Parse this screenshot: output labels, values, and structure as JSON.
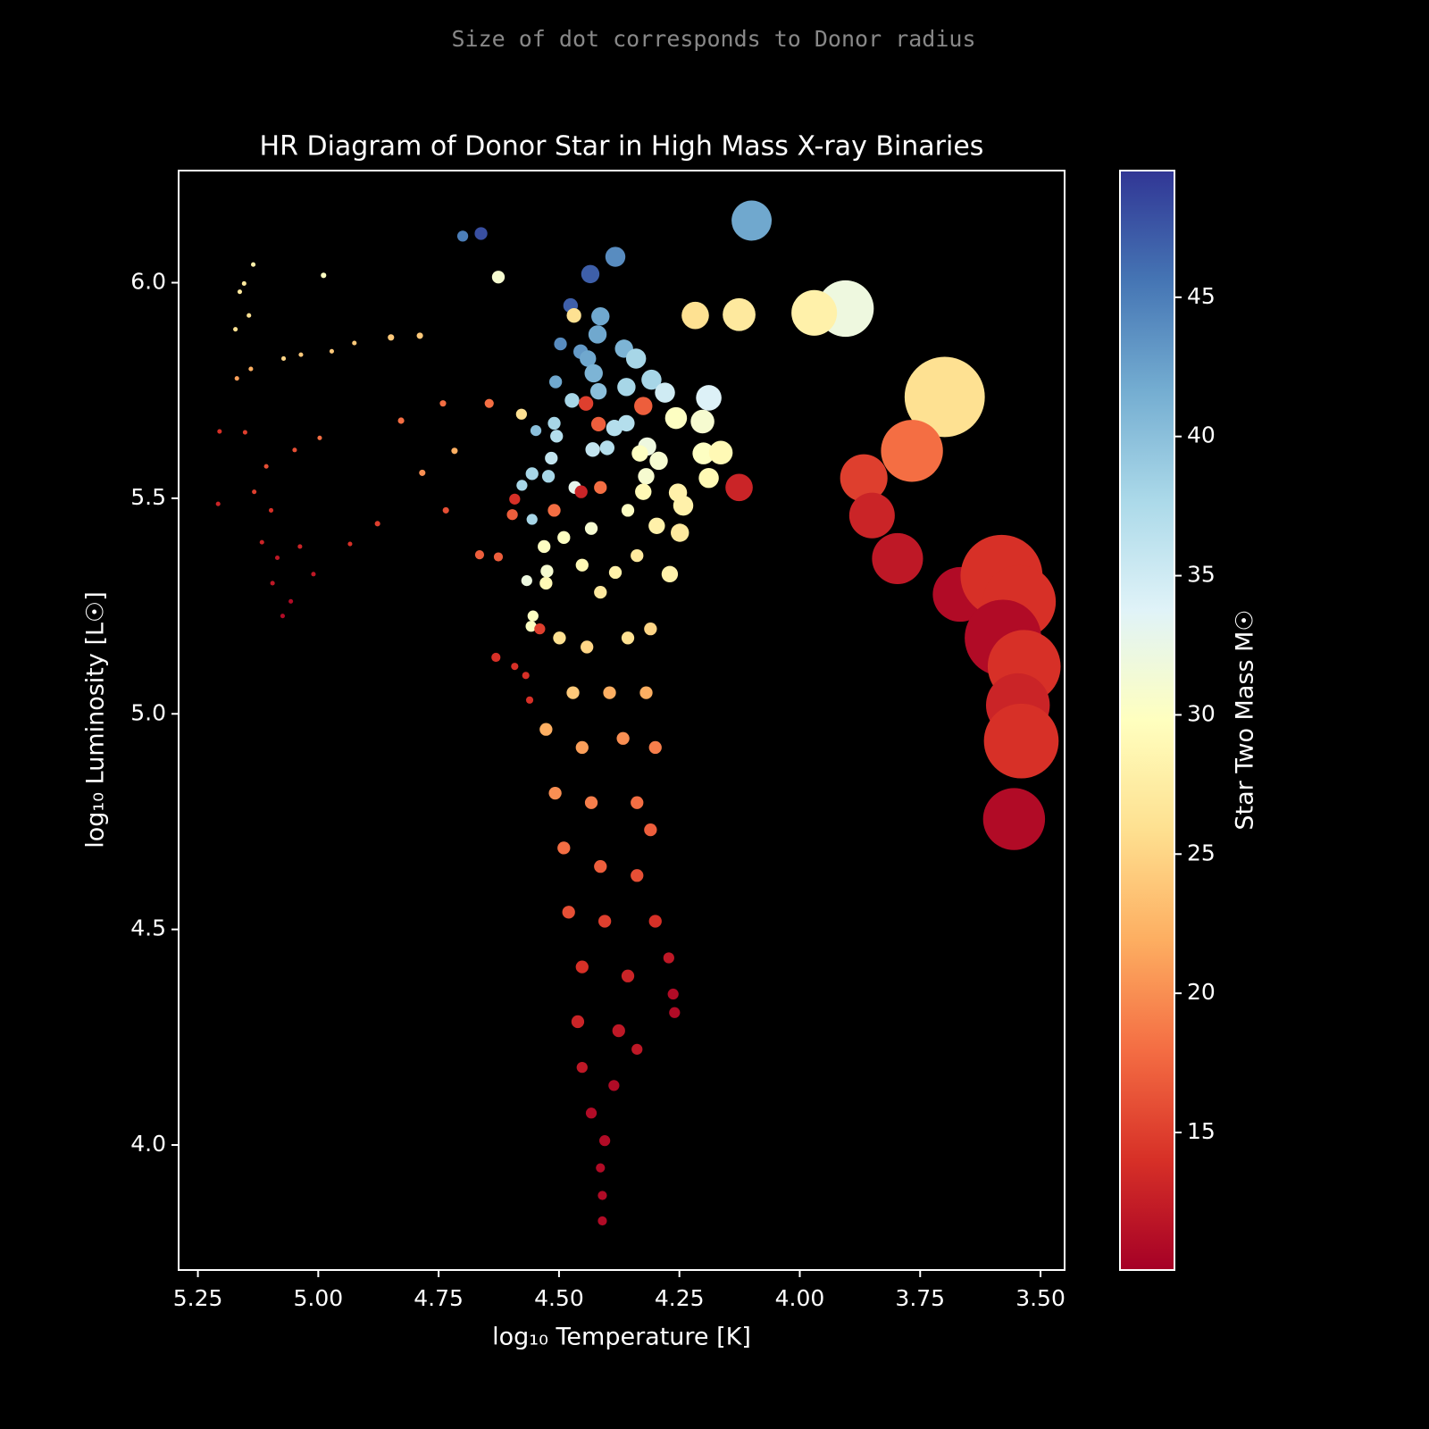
{
  "chart_data": {
    "type": "scatter",
    "subtitle": "Size of dot corresponds to Donor radius",
    "title": "HR Diagram of Donor Star in High Mass X-ray Binaries",
    "x_label": "log₁₀ Temperature [K]",
    "y_label": "log₁₀ Luminosity [L☉]",
    "colormap": "RdYlBu",
    "colorbar": {
      "label": "Star Two Mass M☉",
      "lim": [
        10.06,
        49.55
      ],
      "ticks": [
        15,
        20,
        25,
        30,
        35,
        40,
        45
      ]
    },
    "xlim": [
      5.29,
      3.45
    ],
    "ylim": [
      3.71,
      6.26
    ],
    "xticks": [
      5.25,
      {
        "value": 5.0,
        "label": "5.00"
      },
      4.75,
      {
        "value": 4.5,
        "label": "4.50"
      },
      4.25,
      {
        "value": 4.0,
        "label": "4.00"
      },
      3.75,
      {
        "value": 3.5,
        "label": "3.50"
      }
    ],
    "yticks": [
      {
        "value": 4.0,
        "label": "4.0"
      },
      4.5,
      {
        "value": 5.0,
        "label": "5.0"
      },
      5.5,
      {
        "value": 6.0,
        "label": "6.0"
      }
    ],
    "x": [
      4.1,
      3.905,
      3.97,
      4.126,
      4.217,
      3.699,
      3.767,
      3.867,
      3.85,
      3.797,
      3.667,
      3.581,
      3.544,
      3.578,
      3.534,
      3.547,
      3.54,
      3.555,
      4.126,
      4.662,
      4.7,
      4.626,
      4.383,
      4.435,
      4.476,
      4.469,
      4.414,
      4.42,
      4.497,
      4.455,
      4.365,
      4.34,
      4.44,
      4.428,
      4.308,
      4.36,
      4.28,
      4.507,
      4.325,
      4.189,
      4.473,
      4.418,
      4.444,
      4.418,
      4.257,
      4.202,
      4.36,
      4.385,
      4.578,
      4.645,
      4.51,
      4.505,
      4.548,
      4.4,
      4.43,
      4.317,
      4.332,
      4.293,
      4.2,
      4.164,
      4.189,
      4.516,
      4.556,
      4.522,
      4.319,
      4.467,
      4.414,
      4.325,
      4.454,
      4.253,
      4.242,
      4.592,
      4.577,
      4.51,
      4.597,
      4.556,
      4.249,
      4.297,
      4.665,
      4.626,
      4.531,
      4.525,
      4.567,
      4.27,
      4.383,
      4.554,
      4.558,
      4.54,
      4.631,
      4.592,
      4.569,
      4.561,
      4.499,
      4.442,
      4.357,
      4.31,
      4.471,
      4.395,
      4.319,
      4.527,
      4.452,
      4.367,
      4.3,
      4.508,
      4.433,
      4.338,
      4.31,
      4.49,
      4.414,
      4.338,
      4.48,
      4.405,
      4.3,
      4.272,
      4.452,
      4.357,
      4.263,
      4.26,
      4.461,
      4.376,
      4.338,
      4.452,
      4.386,
      4.433,
      4.405,
      4.414,
      4.41,
      4.41,
      4.527,
      4.452,
      4.338,
      4.433,
      4.49,
      4.357,
      4.414,
      5.135,
      4.989,
      5.154,
      5.163,
      5.144,
      5.172,
      5.072,
      5.036,
      4.972,
      4.925,
      4.849,
      4.789,
      5.14,
      5.169,
      4.741,
      4.828,
      4.717,
      4.784,
      4.997,
      5.049,
      5.108,
      5.133,
      5.208,
      5.098,
      5.117,
      5.085,
      5.038,
      4.934,
      4.877,
      4.735,
      5.095,
      5.057,
      5.074,
      5.01,
      5.205,
      5.152
    ],
    "values": [
      6.144,
      5.94,
      5.93,
      5.926,
      5.924,
      5.735,
      5.61,
      5.547,
      5.46,
      5.36,
      5.277,
      5.32,
      5.26,
      5.176,
      5.11,
      5.02,
      4.937,
      4.756,
      5.525,
      6.114,
      6.108,
      6.013,
      6.06,
      6.02,
      5.947,
      5.924,
      5.922,
      5.88,
      5.858,
      5.84,
      5.847,
      5.824,
      5.824,
      5.79,
      5.775,
      5.758,
      5.745,
      5.77,
      5.714,
      5.733,
      5.727,
      5.748,
      5.72,
      5.672,
      5.686,
      5.678,
      5.674,
      5.663,
      5.695,
      5.72,
      5.674,
      5.644,
      5.657,
      5.617,
      5.613,
      5.62,
      5.604,
      5.587,
      5.604,
      5.606,
      5.547,
      5.593,
      5.557,
      5.551,
      5.551,
      5.525,
      5.525,
      5.515,
      5.515,
      5.513,
      5.483,
      5.498,
      5.53,
      5.472,
      5.462,
      5.451,
      5.42,
      5.436,
      5.369,
      5.364,
      5.388,
      5.331,
      5.309,
      5.324,
      5.328,
      5.227,
      5.203,
      5.197,
      5.131,
      5.11,
      5.089,
      5.032,
      5.176,
      5.155,
      5.176,
      5.197,
      5.049,
      5.049,
      5.049,
      4.964,
      4.922,
      4.943,
      4.922,
      4.816,
      4.794,
      4.794,
      4.731,
      4.689,
      4.646,
      4.625,
      4.54,
      4.519,
      4.519,
      4.434,
      4.413,
      4.392,
      4.35,
      4.307,
      4.286,
      4.265,
      4.222,
      4.18,
      4.138,
      4.074,
      4.01,
      3.947,
      3.883,
      3.824,
      5.303,
      5.345,
      5.367,
      5.43,
      5.409,
      5.472,
      5.282,
      6.042,
      6.017,
      5.998,
      5.979,
      5.924,
      5.892,
      5.824,
      5.833,
      5.841,
      5.86,
      5.873,
      5.877,
      5.8,
      5.778,
      5.72,
      5.68,
      5.61,
      5.559,
      5.64,
      5.612,
      5.574,
      5.515,
      5.487,
      5.472,
      5.398,
      5.362,
      5.388,
      5.394,
      5.441,
      5.472,
      5.303,
      5.261,
      5.227,
      5.324,
      5.655,
      5.653
    ],
    "sizes": [
      44,
      62,
      50,
      36,
      30,
      88,
      68,
      52,
      50,
      56,
      60,
      90,
      80,
      84,
      80,
      70,
      82,
      68,
      30,
      14,
      12,
      14,
      22,
      20,
      16,
      16,
      20,
      20,
      14,
      16,
      20,
      22,
      18,
      20,
      22,
      20,
      22,
      14,
      20,
      28,
      16,
      18,
      16,
      16,
      24,
      26,
      18,
      18,
      12,
      10,
      14,
      14,
      12,
      16,
      16,
      20,
      18,
      20,
      24,
      26,
      22,
      14,
      14,
      14,
      18,
      14,
      14,
      18,
      14,
      20,
      22,
      12,
      12,
      14,
      12,
      12,
      20,
      18,
      10,
      10,
      14,
      14,
      12,
      18,
      14,
      12,
      12,
      12,
      10,
      8,
      8,
      8,
      14,
      14,
      14,
      14,
      14,
      14,
      14,
      14,
      14,
      14,
      14,
      14,
      14,
      14,
      14,
      14,
      14,
      14,
      14,
      14,
      14,
      12,
      14,
      14,
      12,
      12,
      14,
      14,
      12,
      12,
      12,
      12,
      12,
      10,
      10,
      10,
      14,
      14,
      14,
      14,
      14,
      14,
      14,
      5,
      6,
      5,
      5,
      5,
      5,
      5,
      5,
      5,
      5,
      7,
      7,
      5,
      5,
      7,
      7,
      7,
      7,
      5,
      5,
      5,
      5,
      5,
      5,
      5,
      5,
      5,
      5,
      6,
      7,
      5,
      5,
      5,
      5,
      5,
      5
    ],
    "colors": [
      42,
      32,
      28,
      27,
      26,
      26,
      18,
      15,
      13,
      12,
      11,
      14,
      14,
      11,
      14,
      13,
      14,
      11,
      13,
      48,
      45,
      31,
      44,
      47,
      47,
      26,
      42,
      42,
      44,
      43,
      41,
      38,
      42,
      41,
      38,
      38,
      35,
      42,
      17,
      34,
      38,
      40,
      15,
      17,
      30,
      31,
      37,
      37,
      26,
      18,
      38,
      37,
      40,
      37,
      36,
      32,
      30,
      31,
      30,
      29,
      29,
      36,
      38,
      38,
      31,
      33,
      18,
      29,
      13,
      28,
      28,
      14,
      38,
      18,
      17,
      38,
      27,
      28,
      17,
      17,
      30,
      31,
      32,
      28,
      28,
      30,
      30,
      15,
      14,
      14,
      14,
      14,
      26,
      25,
      26,
      25,
      24,
      22,
      22,
      22,
      21,
      20,
      19,
      20,
      19,
      18,
      17,
      18,
      17,
      16,
      16,
      15,
      14,
      12,
      14,
      13,
      11,
      11,
      13,
      12,
      12,
      12,
      11,
      11,
      11,
      11,
      11,
      11,
      29,
      29,
      27,
      31,
      30,
      30,
      27,
      28,
      30,
      27,
      27,
      26,
      26,
      25,
      24,
      24,
      24,
      24,
      24,
      22,
      21,
      18,
      18,
      22,
      20,
      18,
      16,
      16,
      15,
      13,
      14,
      13,
      12,
      13,
      14,
      15,
      16,
      12,
      11,
      11,
      12,
      14,
      15
    ]
  }
}
